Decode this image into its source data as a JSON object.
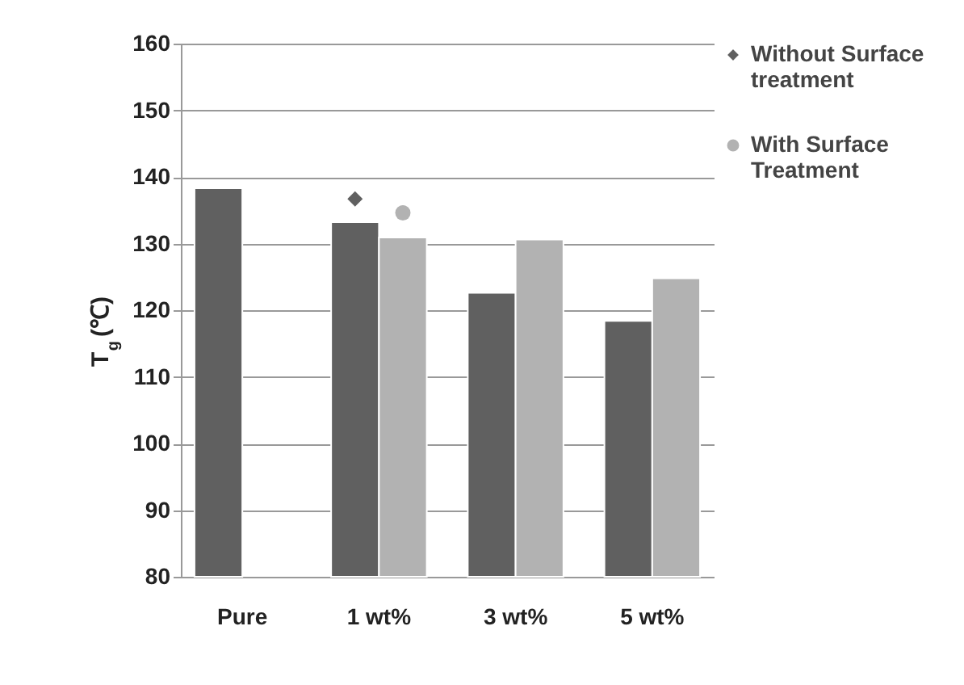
{
  "chart_data": {
    "type": "bar",
    "ylabel": "T$_{g}$ (℃)",
    "categories": [
      "Pure",
      "1 wt%",
      "3 wt%",
      "5 wt%"
    ],
    "series": [
      {
        "name": "Without Surface treatment",
        "color": "#606060",
        "values": [
          138.3,
          133.2,
          122.6,
          118.4
        ]
      },
      {
        "name": "With Surface Treatment",
        "color": "#b2b2b2",
        "values": [
          null,
          130.9,
          130.6,
          124.8
        ]
      },
      {
        "type": "scatter",
        "marker": "diamond",
        "color": "#606060",
        "values": [
          null,
          136.7,
          null,
          null
        ]
      },
      {
        "type": "scatter",
        "marker": "circle",
        "color": "#b2b2b2",
        "values": [
          null,
          134.6,
          null,
          null
        ]
      }
    ],
    "ylim": [
      80,
      160
    ],
    "yticks": [
      80,
      90,
      100,
      110,
      120,
      130,
      140,
      150,
      160
    ],
    "grid": "y",
    "legend": "right"
  }
}
